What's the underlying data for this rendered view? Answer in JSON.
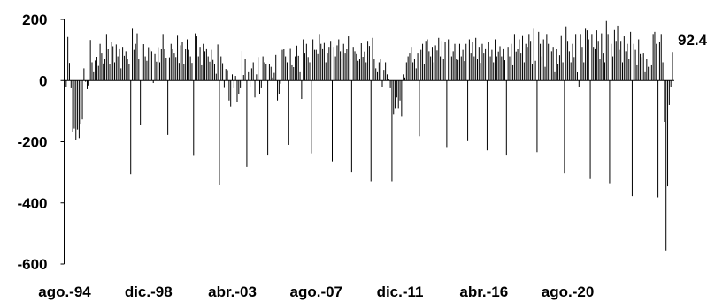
{
  "chart_data": {
    "type": "bar",
    "title": "",
    "xlabel": "",
    "ylabel": "",
    "ylim": [
      -600,
      200
    ],
    "y_ticks": [
      200,
      0,
      -200,
      -400,
      -600
    ],
    "x_tick_labels": [
      "ago.-94",
      "dic.-98",
      "abr.-03",
      "ago.-07",
      "dic.-11",
      "abr.-16",
      "ago.-20"
    ],
    "grid": false,
    "legend": "none",
    "bar_color": "#000000",
    "axis_color": "#000000",
    "series": [
      {
        "start": "1994-08",
        "frequency": "monthly",
        "values": [
          171,
          -22,
          143,
          58,
          -25,
          -168,
          -157,
          -193,
          -160,
          -188,
          -141,
          -127,
          40,
          -4,
          -28,
          -16,
          133,
          60,
          30,
          66,
          78,
          48,
          120,
          90,
          56,
          70,
          150,
          103,
          55,
          126,
          112,
          60,
          118,
          80,
          105,
          40,
          110,
          82,
          95,
          70,
          54,
          -306,
          170,
          100,
          120,
          155,
          70,
          -145,
          106,
          119,
          80,
          65,
          109,
          100,
          95,
          -8,
          88,
          62,
          109,
          60,
          103,
          150,
          104,
          73,
          -178,
          74,
          120,
          103,
          90,
          75,
          147,
          58,
          115,
          125,
          55,
          102,
          135,
          100,
          80,
          58,
          -246,
          155,
          145,
          80,
          110,
          50,
          120,
          95,
          105,
          80,
          62,
          100,
          68,
          55,
          22,
          118,
          -340,
          80,
          57,
          -24,
          38,
          34,
          -65,
          -85,
          20,
          -25,
          15,
          -70,
          -45,
          -25,
          96,
          18,
          70,
          -282,
          30,
          -20,
          40,
          60,
          -55,
          20,
          75,
          -45,
          -25,
          80,
          60,
          55,
          -245,
          55,
          45,
          10,
          25,
          85,
          -65,
          -45,
          -10,
          100,
          102,
          80,
          60,
          -210,
          106,
          50,
          44,
          80,
          114,
          82,
          30,
          -60,
          135,
          90,
          120,
          75,
          60,
          -238,
          135,
          100,
          100,
          88,
          150,
          120,
          105,
          123,
          60,
          90,
          110,
          130,
          -264,
          110,
          80,
          115,
          135,
          95,
          70,
          120,
          90,
          102,
          145,
          70,
          -300,
          110,
          95,
          88,
          65,
          70,
          122,
          78,
          94,
          60,
          130,
          113,
          -330,
          140,
          70,
          40,
          30,
          60,
          70,
          -20,
          35,
          60,
          20,
          5,
          -25,
          -330,
          -110,
          -90,
          -55,
          -90,
          -65,
          -116,
          20,
          10,
          60,
          80,
          90,
          110,
          60,
          70,
          40,
          90,
          -182,
          100,
          120,
          55,
          130,
          135,
          95,
          80,
          110,
          60,
          115,
          98,
          140,
          80,
          130,
          70,
          125,
          -220,
          135,
          108,
          80,
          95,
          120,
          70,
          68,
          120,
          80,
          100,
          64,
          120,
          -198,
          135,
          90,
          125,
          80,
          140,
          70,
          110,
          58,
          120,
          90,
          105,
          -228,
          125,
          80,
          100,
          60,
          135,
          80,
          94,
          112,
          80,
          105,
          67,
          -245,
          110,
          80,
          120,
          50,
          150,
          94,
          103,
          135,
          90,
          146,
          60,
          120,
          110,
          150,
          130,
          55,
          170,
          65,
          -234,
          160,
          120,
          80,
          135,
          45,
          150,
          120,
          75,
          95,
          110,
          30,
          103,
          55,
          84,
          146,
          60,
          -303,
          175,
          130,
          95,
          60,
          120,
          75,
          150,
          28,
          -22,
          150,
          110,
          60,
          170,
          165,
          135,
          -322,
          150,
          110,
          105,
          165,
          130,
          70,
          155,
          90,
          60,
          195,
          150,
          -336,
          120,
          80,
          166,
          130,
          180,
          100,
          130,
          60,
          145,
          95,
          120,
          70,
          160,
          -378,
          120,
          100,
          50,
          135,
          88,
          75,
          90,
          30,
          70,
          45,
          -10,
          50,
          150,
          160,
          120,
          -382,
          125,
          150,
          60,
          -135,
          -556,
          -346,
          -80,
          -20,
          92.4
        ]
      }
    ],
    "annotations": [
      {
        "text": "92.4",
        "target": "last_bar"
      }
    ]
  }
}
